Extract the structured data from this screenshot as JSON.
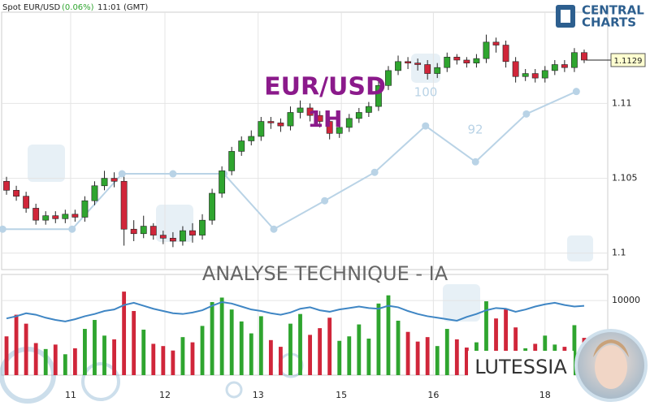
{
  "chart_data": {
    "type": "candlestick",
    "header": {
      "instrument": "Spot EUR/USD",
      "change": "(0.06%)",
      "time": "11:01 (GMT)"
    },
    "title": "EUR/USD",
    "subtitle": "1H",
    "banner": "ANALYSE TECHNIQUE - IA",
    "brand": {
      "line1": "CENTRAL",
      "line2": "CHARTS"
    },
    "author": "LUTESSIA",
    "up_color": "#2fa52f",
    "down_color": "#d0263a",
    "xlim": [
      -0.5,
      59.5
    ],
    "xticks": [
      {
        "value": 6.55,
        "label": "11"
      },
      {
        "value": 16.18,
        "label": "12"
      },
      {
        "value": 25.7,
        "label": "13"
      },
      {
        "value": 34.2,
        "label": "15"
      },
      {
        "value": 43.6,
        "label": "16"
      },
      {
        "value": 55.0,
        "label": "18"
      }
    ],
    "ylim": [
      1.0989,
      1.1161
    ],
    "yticks": [
      1.1,
      1.105,
      1.11
    ],
    "last_price": 1.1129,
    "open": [
      1.1048,
      1.1042,
      1.1038,
      1.103,
      1.1022,
      1.1025,
      1.1023,
      1.1026,
      1.1024,
      1.1035,
      1.1045,
      1.105,
      1.1048,
      1.1016,
      1.1013,
      1.1018,
      1.1012,
      1.101,
      1.1008,
      1.1015,
      1.1012,
      1.1022,
      1.104,
      1.1055,
      1.1068,
      1.1075,
      1.1078,
      1.1088,
      1.1087,
      1.1085,
      1.1094,
      1.1097,
      1.1092,
      1.1088,
      1.108,
      1.1084,
      1.109,
      1.1094,
      1.1098,
      1.1112,
      1.1122,
      1.1128,
      1.1127,
      1.1126,
      1.112,
      1.1124,
      1.1131,
      1.1129,
      1.1127,
      1.113,
      1.1141,
      1.1139,
      1.1128,
      1.1118,
      1.112,
      1.1117,
      1.1122,
      1.1126,
      1.1124,
      1.1134
    ],
    "high": [
      1.1051,
      1.1045,
      1.1041,
      1.1033,
      1.1028,
      1.1028,
      1.1029,
      1.1029,
      1.1038,
      1.1048,
      1.1055,
      1.1054,
      1.1051,
      1.1022,
      1.1025,
      1.102,
      1.1015,
      1.1014,
      1.1018,
      1.102,
      1.1026,
      1.1043,
      1.1058,
      1.1071,
      1.1078,
      1.1082,
      1.1091,
      1.1091,
      1.109,
      1.1098,
      1.1102,
      1.11,
      1.1095,
      1.1091,
      1.1087,
      1.1093,
      1.1097,
      1.1101,
      1.1115,
      1.1125,
      1.1132,
      1.1131,
      1.113,
      1.1129,
      1.1127,
      1.1134,
      1.1133,
      1.1131,
      1.1133,
      1.1146,
      1.1144,
      1.1142,
      1.1131,
      1.1123,
      1.1123,
      1.1125,
      1.1129,
      1.1129,
      1.1137,
      1.1136
    ],
    "low": [
      1.1039,
      1.1035,
      1.1027,
      1.1019,
      1.1019,
      1.102,
      1.102,
      1.1021,
      1.1021,
      1.1032,
      1.1042,
      1.1044,
      1.1005,
      1.1008,
      1.101,
      1.1009,
      1.1006,
      1.1004,
      1.1005,
      1.1007,
      1.1009,
      1.1019,
      1.1037,
      1.1052,
      1.1065,
      1.1072,
      1.1075,
      1.1083,
      1.1081,
      1.1082,
      1.109,
      1.1088,
      1.1084,
      1.1076,
      1.1077,
      1.1081,
      1.1087,
      1.1091,
      1.1095,
      1.1109,
      1.1119,
      1.1123,
      1.1122,
      1.1116,
      1.1117,
      1.1121,
      1.1126,
      1.1124,
      1.1124,
      1.1127,
      1.1134,
      1.1124,
      1.1114,
      1.1115,
      1.1114,
      1.1114,
      1.1119,
      1.1121,
      1.1121,
      1.1127
    ],
    "close": [
      1.1042,
      1.1038,
      1.103,
      1.1022,
      1.1025,
      1.1023,
      1.1026,
      1.1024,
      1.1035,
      1.1045,
      1.105,
      1.1048,
      1.1016,
      1.1013,
      1.1018,
      1.1012,
      1.101,
      1.1008,
      1.1015,
      1.1012,
      1.1022,
      1.104,
      1.1055,
      1.1068,
      1.1075,
      1.1078,
      1.1088,
      1.1087,
      1.1085,
      1.1094,
      1.1097,
      1.1092,
      1.1088,
      1.108,
      1.1084,
      1.109,
      1.1094,
      1.1098,
      1.1112,
      1.1122,
      1.1128,
      1.1127,
      1.1126,
      1.112,
      1.1124,
      1.1131,
      1.1129,
      1.1127,
      1.113,
      1.1141,
      1.1139,
      1.1128,
      1.1118,
      1.112,
      1.1117,
      1.1122,
      1.1126,
      1.1124,
      1.1134,
      1.1129
    ],
    "overlay": {
      "color": "#b9d3e6",
      "x": [
        -0.4,
        6.7,
        11.8,
        17,
        22.2,
        27.3,
        32.5,
        37.6,
        42.8,
        47.9,
        53.1,
        58.2
      ],
      "values": [
        1.1016,
        1.1016,
        1.1053,
        1.1053,
        1.1053,
        1.1016,
        1.1035,
        1.1054,
        1.1085,
        1.1061,
        1.1093,
        1.1108
      ]
    },
    "overlay_labels": [
      "100",
      "92"
    ],
    "volume": {
      "ylim": [
        0,
        13500
      ],
      "yticks": [
        10000
      ],
      "values": [
        5200,
        8100,
        6900,
        4300,
        3500,
        4100,
        2800,
        3600,
        6200,
        7400,
        5300,
        4800,
        11200,
        8600,
        6100,
        4200,
        3900,
        3300,
        5100,
        4400,
        6600,
        9800,
        10400,
        8800,
        7200,
        5600,
        7900,
        4700,
        3800,
        6900,
        8200,
        5400,
        6300,
        7700,
        4600,
        5200,
        6800,
        4900,
        9600,
        10700,
        7300,
        5800,
        4500,
        5100,
        3900,
        6200,
        4800,
        3700,
        4400,
        9900,
        7600,
        8900,
        6400,
        3600,
        4200,
        5300,
        4100,
        3800,
        6700,
        5000
      ],
      "line_color": "#3f86c4",
      "line": [
        7600,
        7900,
        8300,
        8100,
        7700,
        7400,
        7200,
        7500,
        7900,
        8200,
        8600,
        8800,
        9400,
        9700,
        9300,
        8900,
        8600,
        8300,
        8200,
        8400,
        8700,
        9300,
        9800,
        9600,
        9200,
        8800,
        8600,
        8300,
        8100,
        8400,
        8900,
        9100,
        8700,
        8500,
        8800,
        9000,
        9200,
        9000,
        8900,
        9300,
        9100,
        8600,
        8200,
        7900,
        7700,
        7500,
        7300,
        7800,
        8200,
        8700,
        9000,
        8900,
        8500,
        8800,
        9200,
        9500,
        9700,
        9400,
        9200,
        9300
      ]
    }
  }
}
